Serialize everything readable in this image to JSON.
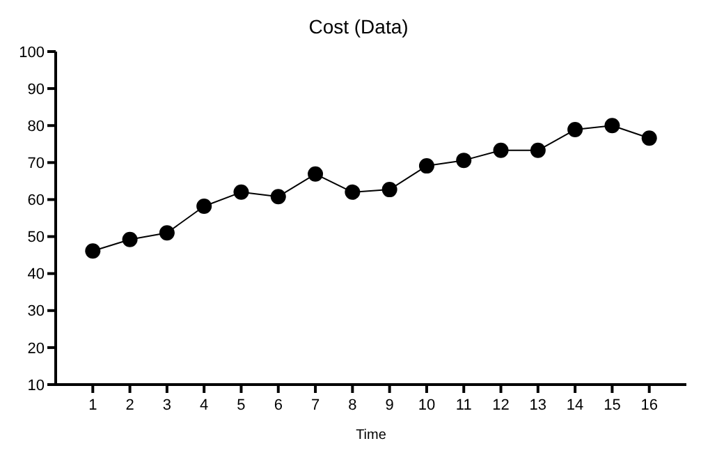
{
  "chart_data": {
    "type": "line",
    "title": "Cost (Data)",
    "xlabel": "Time",
    "x": [
      1,
      2,
      3,
      4,
      5,
      6,
      7,
      8,
      9,
      10,
      11,
      12,
      13,
      14,
      15,
      16
    ],
    "series": [
      {
        "color": "#000000",
        "values": [
          46.1,
          49.2,
          51,
          58.2,
          62,
          60.8,
          66.9,
          62,
          62.7,
          69.1,
          70.6,
          73.3,
          73.3,
          78.9,
          80,
          76.6
        ]
      }
    ],
    "xlim": [
      0,
      17
    ],
    "xticks": [
      1,
      2,
      3,
      4,
      5,
      6,
      7,
      8,
      9,
      10,
      11,
      12,
      13,
      14,
      15,
      16
    ],
    "ylim": [
      10,
      100
    ],
    "yticks": [
      10,
      20,
      30,
      40,
      50,
      60,
      70,
      80,
      90,
      100
    ],
    "grid": false,
    "marker": "circle",
    "line_style": "solid"
  }
}
